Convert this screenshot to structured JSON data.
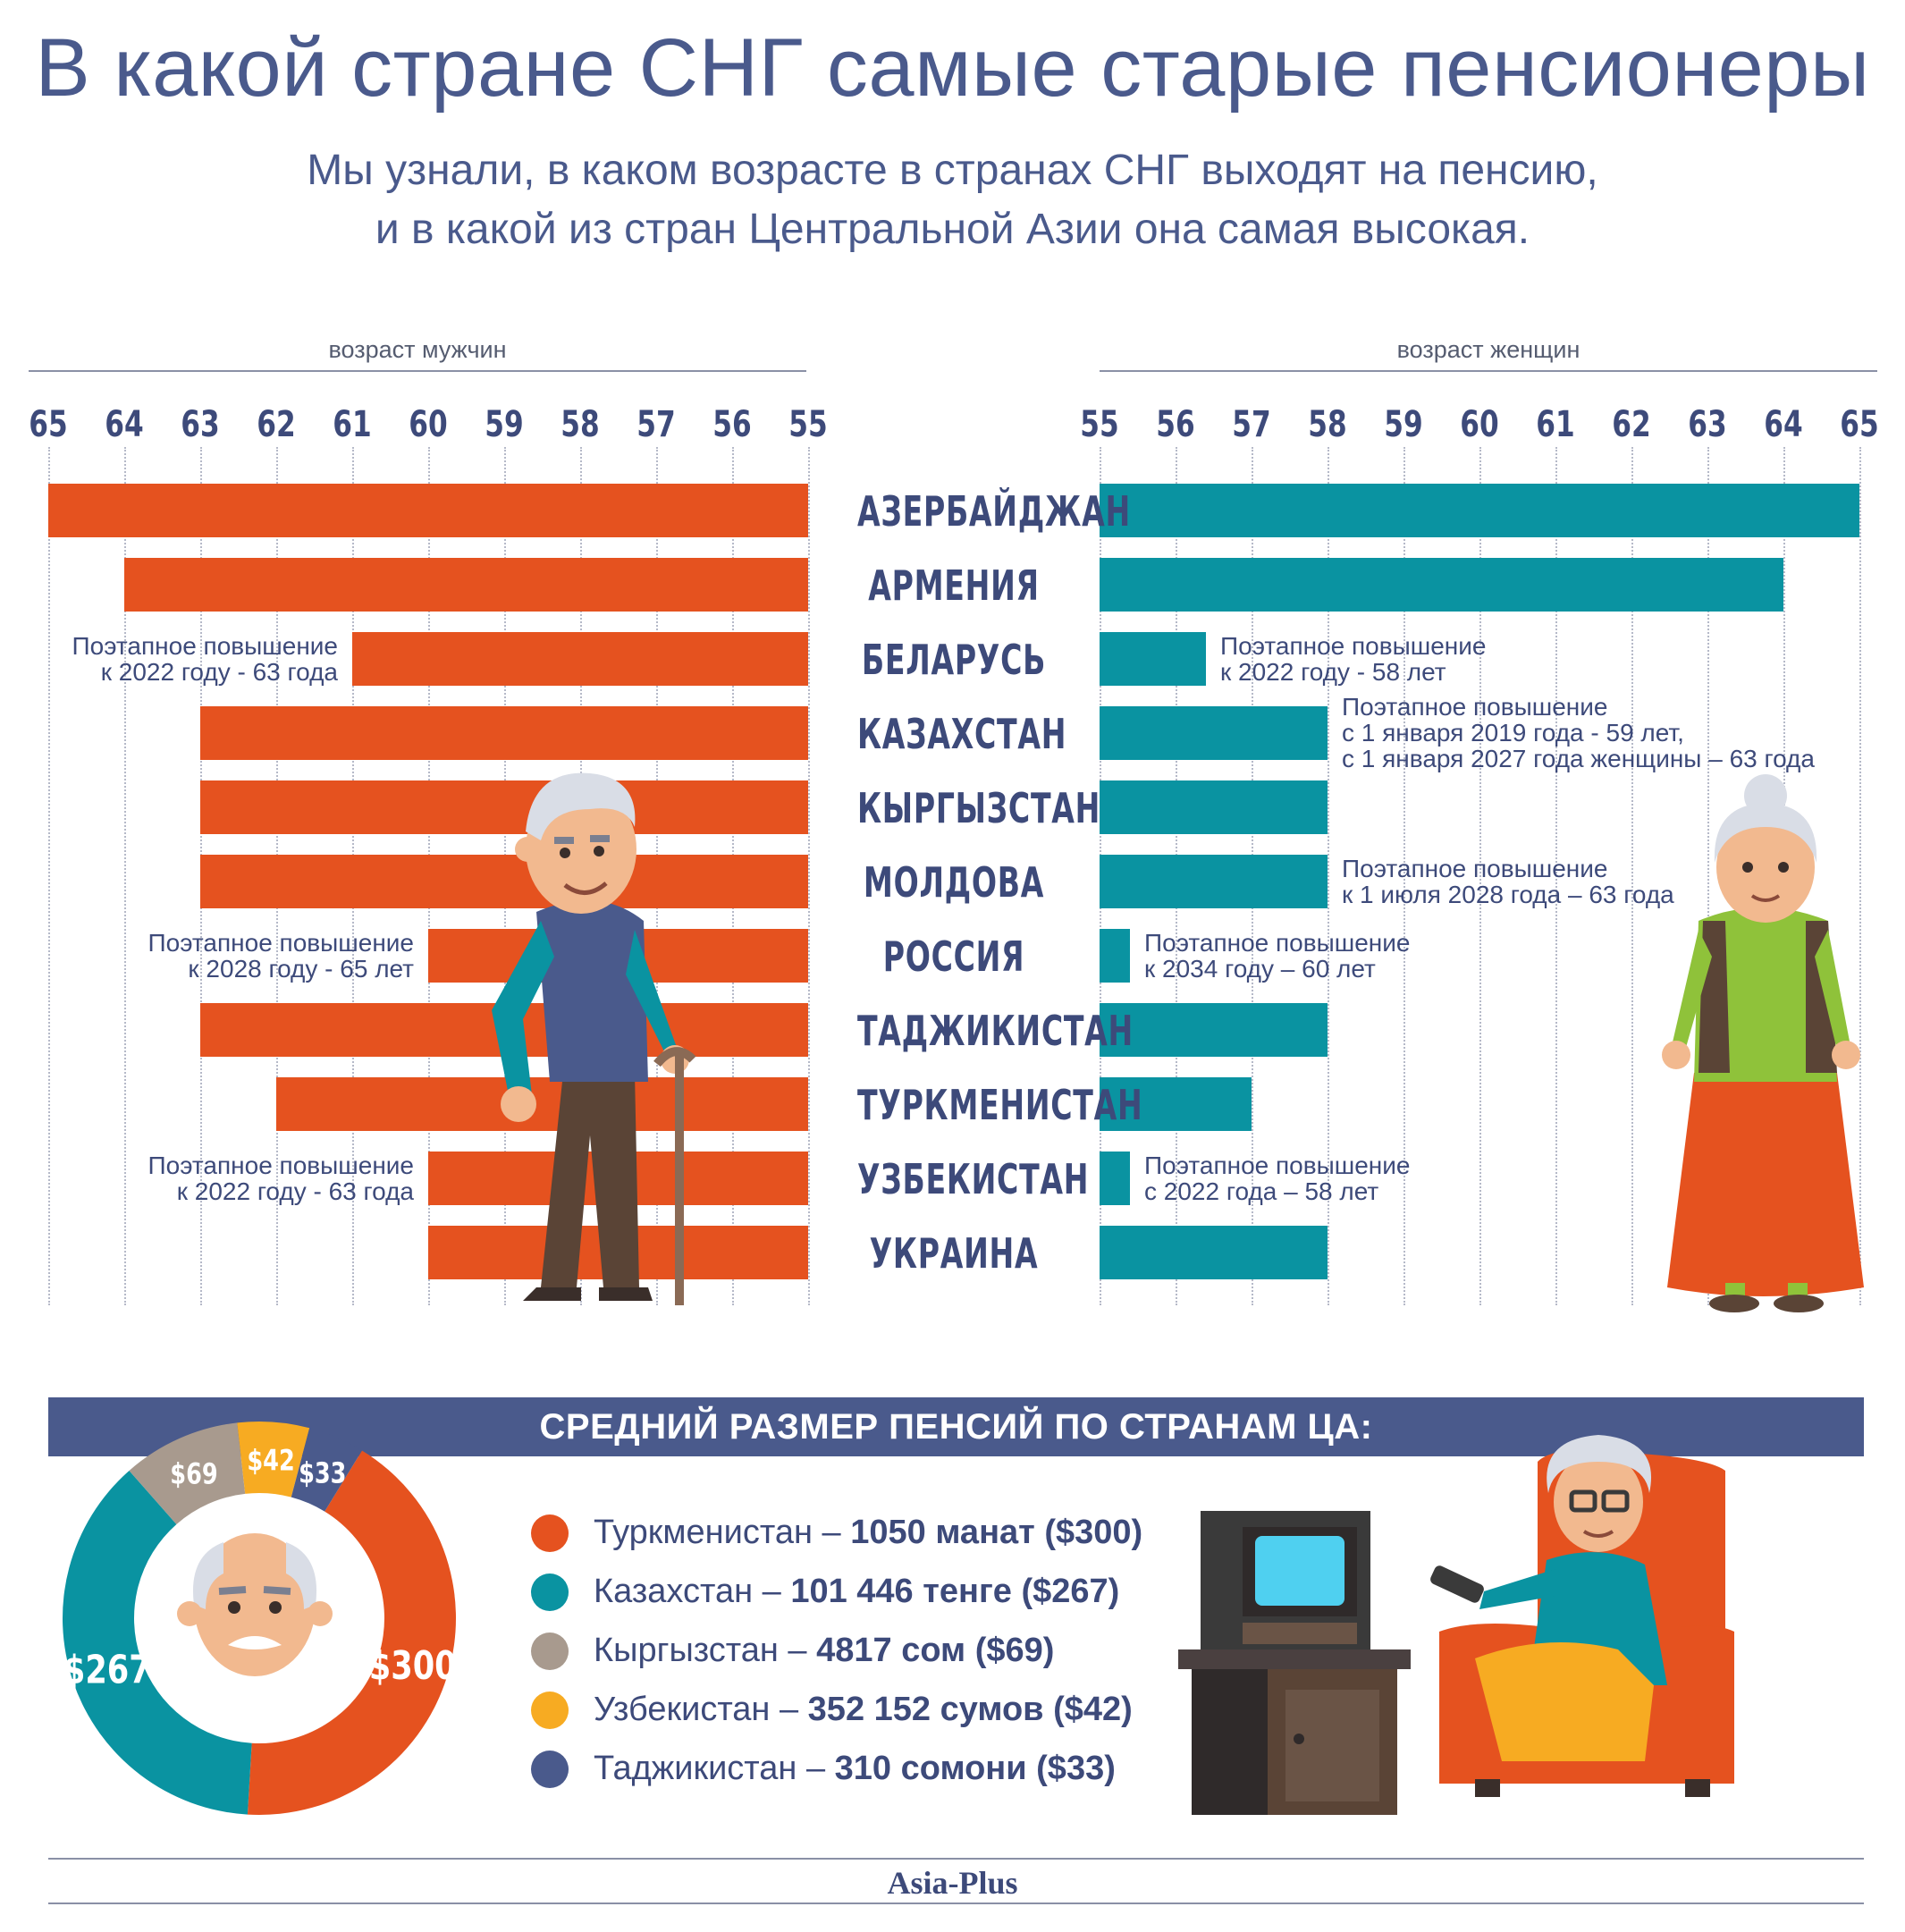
{
  "header": {
    "title": "В какой стране СНГ самые старые пенсионеры",
    "subtitle_line1": "Мы узнали, в каком возрасте в странах СНГ выходят на пенсию,",
    "subtitle_line2": "и в какой из стран Центральной Азии она самая высокая."
  },
  "chart_data": [
    {
      "type": "bar",
      "orientation": "horizontal",
      "panels": [
        {
          "label": "возраст мужчин",
          "axis_ticks": [
            65,
            64,
            63,
            62,
            61,
            60,
            59,
            58,
            57,
            56,
            55
          ],
          "xlim": [
            55,
            65
          ],
          "direction": "reversed"
        },
        {
          "label": "возраст женщин",
          "axis_ticks": [
            55,
            56,
            57,
            58,
            59,
            60,
            61,
            62,
            63,
            64,
            65
          ],
          "xlim": [
            55,
            65
          ],
          "direction": "normal"
        }
      ],
      "categories": [
        "АЗЕРБАЙДЖАН",
        "АРМЕНИЯ",
        "БЕЛАРУСЬ",
        "КАЗАХСТАН",
        "КЫРГЫЗСТАН",
        "МОЛДОВА",
        "РОССИЯ",
        "ТАДЖИКИСТАН",
        "ТУРКМЕНИСТАН",
        "УЗБЕКИСТАН",
        "УКРАИНА"
      ],
      "series": [
        {
          "color": "#e5521f",
          "values": [
            65,
            64,
            61,
            63,
            63,
            63,
            60,
            63,
            62,
            60,
            60
          ]
        },
        {
          "color": "#0a93a1",
          "values": [
            65,
            64,
            56.4,
            58,
            58,
            58,
            55.4,
            58,
            57,
            55.4,
            58
          ]
        }
      ],
      "notes_men": [
        {
          "row": 2,
          "lines": [
            "Поэтапное повышение",
            "к 2022 году - 63 года"
          ]
        },
        {
          "row": 6,
          "lines": [
            "Поэтапное повышение",
            "к 2028 году - 65 лет"
          ]
        },
        {
          "row": 9,
          "lines": [
            "Поэтапное повышение",
            "к 2022 году - 63 года"
          ]
        }
      ],
      "notes_women": [
        {
          "row": 2,
          "lines": [
            "Поэтапное повышение",
            "к 2022 году - 58 лет"
          ]
        },
        {
          "row": 3,
          "lines": [
            "Поэтапное повышение",
            "с 1 января 2019 года - 59 лет,",
            "с 1 января 2027 года женщины – 63 года"
          ]
        },
        {
          "row": 5,
          "lines": [
            "Поэтапное повышение",
            "к 1 июля 2028 года – 63 года"
          ]
        },
        {
          "row": 6,
          "lines": [
            "Поэтапное повышение",
            "к 2034 году – 60 лет"
          ]
        },
        {
          "row": 9,
          "lines": [
            "Поэтапное повышение",
            "с 2022 года – 58 лет"
          ]
        }
      ]
    },
    {
      "type": "pie",
      "style": "donut",
      "title": "СРЕДНИЙ РАЗМЕР ПЕНСИЙ ПО СТРАНАМ ЦА:",
      "slices": [
        {
          "country": "Туркменистан",
          "label": "$300",
          "value": 300,
          "color": "#e5521f",
          "legend_prefix": "Туркменистан – ",
          "legend_amount": "1050 манат ($300)"
        },
        {
          "country": "Казахстан",
          "label": "$267",
          "value": 267,
          "color": "#0a93a1",
          "legend_prefix": "Казахстан – ",
          "legend_amount": "101 446 тенге ($267)"
        },
        {
          "country": "Кыргызстан",
          "label": "$69",
          "value": 69,
          "color": "#a89a8e",
          "legend_prefix": "Кыргызстан – ",
          "legend_amount": "4817 сом ($69)"
        },
        {
          "country": "Узбекистан",
          "label": "$42",
          "value": 42,
          "color": "#f7ab22",
          "legend_prefix": "Узбекистан – ",
          "legend_amount": "352 152 сумов ($42)"
        },
        {
          "country": "Таджикистан",
          "label": "$33",
          "value": 33,
          "color": "#4a5a8c",
          "legend_prefix": "Таджикистан – ",
          "legend_amount": "310 сомони ($33)"
        }
      ]
    }
  ],
  "footer": {
    "brand": "Asia-Plus"
  },
  "icons": [
    "old-man-with-cane-icon",
    "old-woman-icon",
    "old-man-face-icon",
    "old-woman-in-armchair-icon",
    "tv-set-icon"
  ]
}
